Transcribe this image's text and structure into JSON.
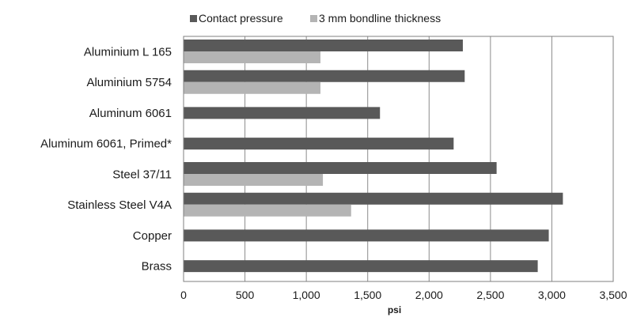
{
  "chart_data": {
    "type": "bar",
    "orientation": "horizontal",
    "categories": [
      "Aluminium L 165",
      "Aluminium 5754",
      "Aluminum 6061",
      "Aluminum 6061, Primed*",
      "Steel 37/11",
      "Stainless Steel V4A",
      "Copper",
      "Brass"
    ],
    "series": [
      {
        "name": "Contact pressure",
        "color": "#595959",
        "values": [
          2275,
          2290,
          1600,
          2200,
          2550,
          3090,
          2975,
          2885
        ]
      },
      {
        "name": "3 mm bondline thickness",
        "color": "#b4b4b4",
        "values": [
          1115,
          1115,
          null,
          null,
          1135,
          1365,
          null,
          null
        ]
      }
    ],
    "xlabel": "psi",
    "ylabel": "",
    "xlim": [
      0,
      3500
    ],
    "xticks": [
      0,
      500,
      1000,
      1500,
      2000,
      2500,
      3000,
      3500
    ],
    "xtick_labels": [
      "0",
      "500",
      "1,000",
      "1,500",
      "2,000",
      "2,500",
      "3,000",
      "3,500"
    ],
    "grid": "vertical",
    "legend": "top"
  }
}
